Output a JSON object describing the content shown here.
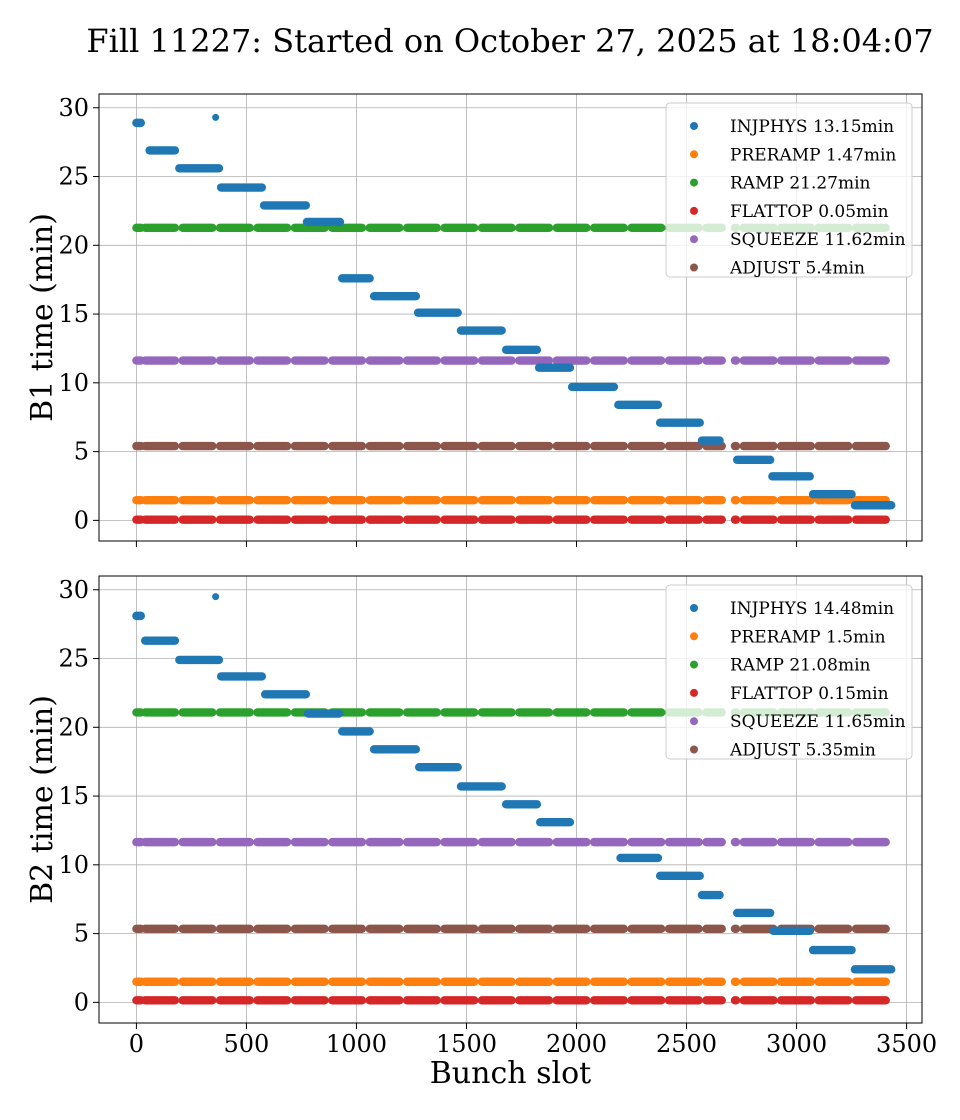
{
  "title": "Fill 11227: Started on October 27, 2025 at 18:04:07",
  "colors": {
    "INJPHYS": "#1f77b4",
    "PRERAMP": "#ff7f0e",
    "RAMP": "#2ca02c",
    "FLATTOP": "#d62728",
    "SQUEEZE": "#9467bd",
    "ADJUST": "#8c564b"
  },
  "chart_data": [
    {
      "type": "scatter",
      "xlabel": "",
      "ylabel": "B1 time (min)",
      "xlim": [
        -170,
        3570
      ],
      "ylim": [
        -1.5,
        31
      ],
      "xticks": [
        0,
        500,
        1000,
        1500,
        2000,
        2500,
        3000,
        3500
      ],
      "yticks": [
        0,
        5,
        10,
        15,
        20,
        25,
        30
      ],
      "grid": true,
      "legend_position": "top-right",
      "gaps": [
        [
          2660,
          2720
        ]
      ],
      "isolated_points": [
        {
          "x": 360,
          "y": 29.3
        }
      ],
      "series": [
        {
          "name": "INJPHYS 13.15min",
          "phase": "INJPHYS",
          "kind": "staircase",
          "steps": [
            [
              0,
              20,
              28.9
            ],
            [
              60,
              175,
              26.9
            ],
            [
              195,
              375,
              25.6
            ],
            [
              385,
              570,
              24.2
            ],
            [
              580,
              770,
              22.9
            ],
            [
              775,
              925,
              21.7
            ],
            [
              935,
              1060,
              17.6
            ],
            [
              1080,
              1270,
              16.3
            ],
            [
              1280,
              1460,
              15.1
            ],
            [
              1475,
              1660,
              13.8
            ],
            [
              1680,
              1820,
              12.4
            ],
            [
              1830,
              1970,
              11.1
            ],
            [
              1980,
              2170,
              9.7
            ],
            [
              2190,
              2370,
              8.4
            ],
            [
              2380,
              2560,
              7.1
            ],
            [
              2570,
              2650,
              5.8
            ],
            [
              2730,
              2880,
              4.4
            ],
            [
              2890,
              3060,
              3.2
            ],
            [
              3075,
              3250,
              1.9
            ],
            [
              3265,
              3430,
              1.1
            ]
          ]
        },
        {
          "name": "PRERAMP 1.47min",
          "phase": "PRERAMP",
          "kind": "flat",
          "y": 1.47,
          "x_start": 0,
          "x_end": 3430
        },
        {
          "name": "RAMP 21.27min",
          "phase": "RAMP",
          "kind": "flat",
          "y": 21.27,
          "x_start": 0,
          "x_end": 3430
        },
        {
          "name": "FLATTOP 0.05min",
          "phase": "FLATTOP",
          "kind": "flat",
          "y": 0.05,
          "x_start": 0,
          "x_end": 3430
        },
        {
          "name": "SQUEEZE 11.62min",
          "phase": "SQUEEZE",
          "kind": "flat",
          "y": 11.62,
          "x_start": 0,
          "x_end": 3430
        },
        {
          "name": "ADJUST 5.4min",
          "phase": "ADJUST",
          "kind": "flat",
          "y": 5.4,
          "x_start": 0,
          "x_end": 3430
        }
      ]
    },
    {
      "type": "scatter",
      "xlabel": "Bunch slot",
      "ylabel": "B2 time (min)",
      "xlim": [
        -170,
        3570
      ],
      "ylim": [
        -1.5,
        31
      ],
      "xticks": [
        0,
        500,
        1000,
        1500,
        2000,
        2500,
        3000,
        3500
      ],
      "yticks": [
        0,
        5,
        10,
        15,
        20,
        25,
        30
      ],
      "grid": true,
      "legend_position": "top-right",
      "gaps": [
        [
          2660,
          2720
        ]
      ],
      "isolated_points": [
        {
          "x": 360,
          "y": 29.5
        }
      ],
      "series": [
        {
          "name": "INJPHYS 14.48min",
          "phase": "INJPHYS",
          "kind": "staircase",
          "steps": [
            [
              0,
              20,
              28.1
            ],
            [
              40,
              175,
              26.3
            ],
            [
              195,
              375,
              24.9
            ],
            [
              385,
              570,
              23.7
            ],
            [
              585,
              770,
              22.4
            ],
            [
              780,
              920,
              21.0
            ],
            [
              935,
              1060,
              19.7
            ],
            [
              1080,
              1270,
              18.4
            ],
            [
              1285,
              1460,
              17.1
            ],
            [
              1475,
              1660,
              15.7
            ],
            [
              1680,
              1820,
              14.4
            ],
            [
              1835,
              1970,
              13.1
            ],
            [
              2200,
              2370,
              10.5
            ],
            [
              2380,
              2560,
              9.2
            ],
            [
              2570,
              2650,
              7.8
            ],
            [
              2730,
              2880,
              6.5
            ],
            [
              2895,
              3060,
              5.2
            ],
            [
              3075,
              3250,
              3.8
            ],
            [
              3265,
              3430,
              2.4
            ]
          ]
        },
        {
          "name": "PRERAMP 1.5min",
          "phase": "PRERAMP",
          "kind": "flat",
          "y": 1.5,
          "x_start": 0,
          "x_end": 3430
        },
        {
          "name": "RAMP 21.08min",
          "phase": "RAMP",
          "kind": "flat",
          "y": 21.08,
          "x_start": 0,
          "x_end": 3430
        },
        {
          "name": "FLATTOP 0.15min",
          "phase": "FLATTOP",
          "kind": "flat",
          "y": 0.15,
          "x_start": 0,
          "x_end": 3430
        },
        {
          "name": "SQUEEZE 11.65min",
          "phase": "SQUEEZE",
          "kind": "flat",
          "y": 11.65,
          "x_start": 0,
          "x_end": 3430
        },
        {
          "name": "ADJUST 5.35min",
          "phase": "ADJUST",
          "kind": "flat",
          "y": 5.35,
          "x_start": 0,
          "x_end": 3430
        }
      ]
    }
  ]
}
